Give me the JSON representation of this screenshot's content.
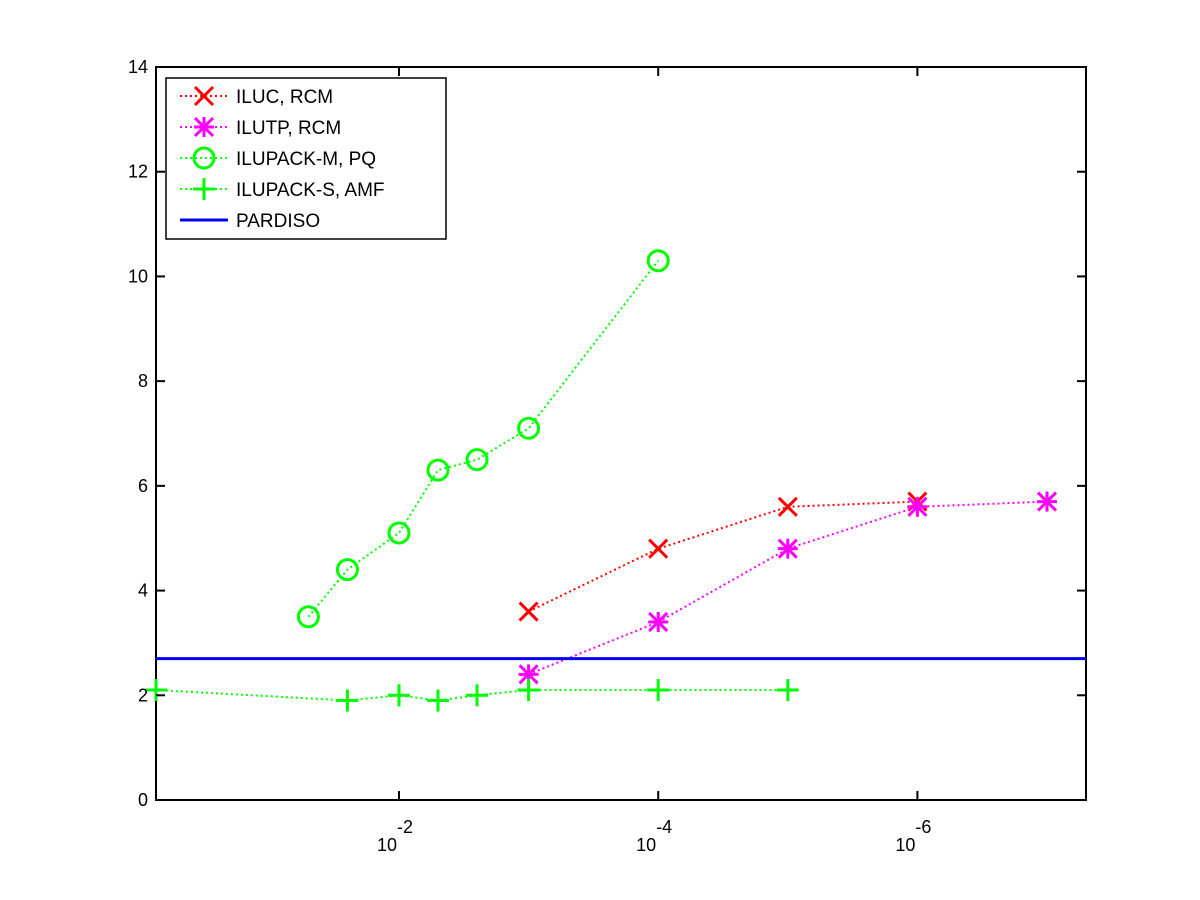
{
  "chart_data": {
    "type": "line",
    "title": "",
    "xlabel": "",
    "ylabel": "",
    "x_scale": "log",
    "x_reversed": true,
    "xlim": [
      0.75,
      5e-08
    ],
    "ylim": [
      0,
      14
    ],
    "yticks": [
      0,
      2,
      4,
      6,
      8,
      10,
      12,
      14
    ],
    "xticks": [
      {
        "value": 0.01,
        "base": "10",
        "exp": "-2"
      },
      {
        "value": 0.0001,
        "base": "10",
        "exp": "-4"
      },
      {
        "value": 1e-06,
        "base": "10",
        "exp": "-6"
      }
    ],
    "grid": false,
    "legend_position": "top-left",
    "series": [
      {
        "name": "ILUC, RCM",
        "color": "#ff0000",
        "marker": "x",
        "line": "dotted",
        "points": [
          [
            0.001,
            3.6
          ],
          [
            0.0001,
            4.8
          ],
          [
            1e-05,
            5.6
          ],
          [
            1e-06,
            5.7
          ]
        ]
      },
      {
        "name": "ILUTP, RCM",
        "color": "#ff00ff",
        "marker": "asterisk",
        "line": "dotted",
        "points": [
          [
            0.001,
            2.4
          ],
          [
            0.0001,
            3.4
          ],
          [
            1e-05,
            4.8
          ],
          [
            1e-06,
            5.6
          ],
          [
            1e-07,
            5.7
          ]
        ]
      },
      {
        "name": "ILUPACK-M, PQ",
        "color": "#00ff00",
        "marker": "circle",
        "line": "dotted",
        "points": [
          [
            0.05,
            3.5
          ],
          [
            0.025,
            4.4
          ],
          [
            0.01,
            5.1
          ],
          [
            0.005,
            6.3
          ],
          [
            0.0025,
            6.5
          ],
          [
            0.001,
            7.1
          ],
          [
            0.0001,
            10.3
          ]
        ]
      },
      {
        "name": "ILUPACK-S, AMF",
        "color": "#00ff00",
        "marker": "plus",
        "line": "dotted",
        "points": [
          [
            0.75,
            2.1
          ],
          [
            0.025,
            1.9
          ],
          [
            0.01,
            2.0
          ],
          [
            0.005,
            1.9
          ],
          [
            0.0025,
            2.0
          ],
          [
            0.001,
            2.1
          ],
          [
            0.0001,
            2.1
          ],
          [
            1e-05,
            2.1
          ]
        ]
      },
      {
        "name": "PARDISO",
        "color": "#0000ff",
        "marker": "none",
        "line": "solid",
        "points": [
          [
            0.75,
            2.7
          ],
          [
            5e-08,
            2.7
          ]
        ]
      }
    ]
  }
}
